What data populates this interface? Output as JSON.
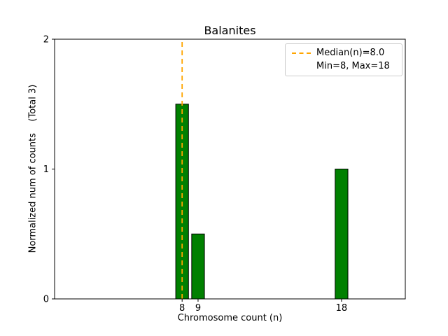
{
  "chart_data": {
    "type": "bar",
    "title": "Balanites",
    "xlabel": "Chromosome count (n)",
    "ylabel": "Normalized num of counts    (Total 3)",
    "categories": [
      8,
      9,
      18
    ],
    "values": [
      1.5,
      0.5,
      1.0
    ],
    "bar_width": 0.8,
    "xlim": [
      0,
      22
    ],
    "ylim": [
      0,
      2
    ],
    "x_ticks": [
      8,
      9,
      18
    ],
    "y_ticks": [
      0,
      1,
      2
    ],
    "grid": false,
    "median_line": {
      "x": 8,
      "style": "dashed"
    },
    "legend": {
      "position": "upper-right",
      "entries": [
        "Median(n)=8.0",
        "Min=8, Max=18"
      ]
    },
    "colors": {
      "bar_fill": "#008000",
      "bar_edge": "#000000",
      "median": "#ffa500",
      "axes": "#000000",
      "legend_border": "#cccccc",
      "background": "#ffffff",
      "text": "#000000"
    }
  }
}
